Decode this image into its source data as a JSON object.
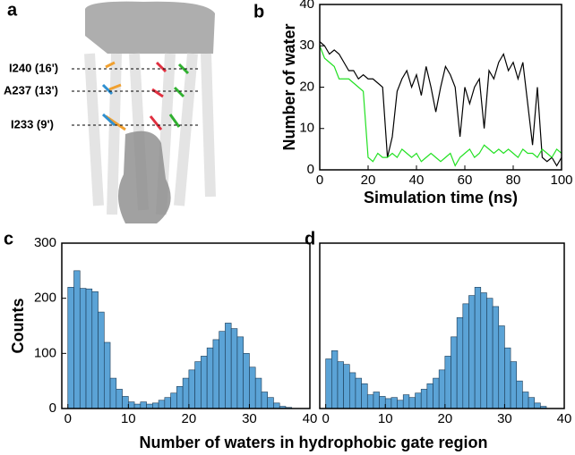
{
  "panel_labels": [
    "a",
    "b",
    "c",
    "d"
  ],
  "structure_labels": [
    "I240 (16')",
    "A237 (13')",
    "I233 (9')"
  ],
  "shared_xlabel": "Number of waters in hydrophobic gate region",
  "chart_data": [
    {
      "type": "line",
      "ylabel": "Number of water",
      "xlabel": "Simulation time (ns)",
      "x": [
        0,
        2,
        4,
        6,
        8,
        10,
        12,
        14,
        16,
        18,
        20,
        22,
        24,
        26,
        28,
        30,
        32,
        34,
        36,
        38,
        40,
        42,
        44,
        46,
        48,
        50,
        52,
        54,
        56,
        58,
        60,
        62,
        64,
        66,
        68,
        70,
        72,
        74,
        76,
        78,
        80,
        82,
        84,
        86,
        88,
        90,
        92,
        94,
        96,
        98,
        100
      ],
      "series": [
        {
          "color": "#000000",
          "values": [
            31,
            30,
            28,
            29,
            28,
            26,
            24,
            24,
            22,
            23,
            22,
            22,
            21,
            20,
            3,
            8,
            19,
            22,
            24,
            20,
            23,
            18,
            25,
            20,
            14,
            20,
            25,
            23,
            20,
            8,
            20,
            16,
            20,
            22,
            10,
            24,
            22,
            26,
            28,
            24,
            26,
            22,
            26,
            16,
            6,
            20,
            3,
            2,
            3,
            1,
            3
          ]
        },
        {
          "color": "#22e022",
          "values": [
            30,
            27,
            26,
            25,
            22,
            22,
            22,
            21,
            20,
            19,
            3,
            2,
            4,
            3,
            3,
            4,
            3,
            5,
            4,
            3,
            4,
            2,
            3,
            4,
            3,
            2,
            3,
            4,
            1,
            3,
            4,
            5,
            3,
            4,
            6,
            5,
            4,
            5,
            4,
            5,
            4,
            3,
            5,
            4,
            4,
            3,
            5,
            4,
            3,
            5,
            4
          ]
        }
      ],
      "xlim": [
        0,
        100
      ],
      "xticks": [
        0,
        20,
        40,
        60,
        80,
        100
      ],
      "ylim": [
        0,
        40
      ],
      "yticks": [
        0,
        10,
        20,
        30,
        40
      ]
    },
    {
      "type": "histogram",
      "ylabel": "Counts",
      "color": "#5ba3d6",
      "bins": [
        0,
        1,
        2,
        3,
        4,
        5,
        6,
        7,
        8,
        9,
        10,
        11,
        12,
        13,
        14,
        15,
        16,
        17,
        18,
        19,
        20,
        21,
        22,
        23,
        24,
        25,
        26,
        27,
        28,
        29,
        30,
        31,
        32,
        33,
        34,
        35,
        36,
        37
      ],
      "values": [
        220,
        250,
        218,
        217,
        212,
        175,
        120,
        55,
        35,
        22,
        12,
        8,
        12,
        8,
        10,
        15,
        20,
        28,
        40,
        55,
        70,
        85,
        95,
        110,
        125,
        140,
        155,
        145,
        130,
        100,
        75,
        55,
        30,
        20,
        10,
        4,
        2
      ],
      "xlim": [
        -1,
        40
      ],
      "xticks": [
        0,
        10,
        20,
        30,
        40
      ],
      "ylim": [
        0,
        300
      ],
      "yticks": [
        0,
        100,
        200,
        300
      ]
    },
    {
      "type": "histogram",
      "color": "#5ba3d6",
      "bins": [
        0,
        1,
        2,
        3,
        4,
        5,
        6,
        7,
        8,
        9,
        10,
        11,
        12,
        13,
        14,
        15,
        16,
        17,
        18,
        19,
        20,
        21,
        22,
        23,
        24,
        25,
        26,
        27,
        28,
        29,
        30,
        31,
        32,
        33,
        34,
        35,
        36,
        37
      ],
      "values": [
        90,
        105,
        85,
        80,
        65,
        55,
        45,
        25,
        30,
        22,
        18,
        20,
        15,
        25,
        20,
        28,
        35,
        45,
        55,
        70,
        95,
        130,
        165,
        190,
        205,
        220,
        210,
        200,
        185,
        150,
        110,
        85,
        50,
        30,
        20,
        10,
        4
      ],
      "xlim": [
        -1,
        40
      ],
      "xticks": [
        0,
        10,
        20,
        30,
        40
      ],
      "ylim": [
        0,
        300
      ]
    }
  ]
}
